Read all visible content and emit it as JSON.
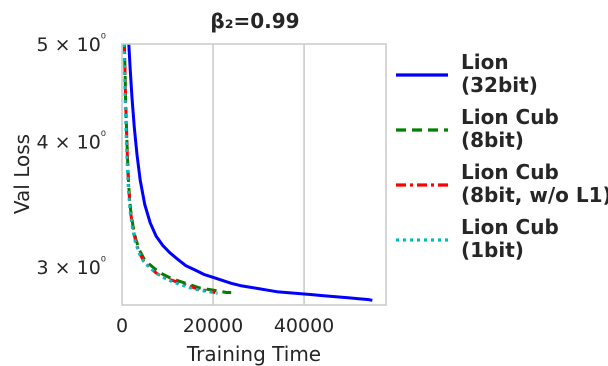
{
  "chart_data": {
    "type": "line",
    "title": "β₂=0.99",
    "xlabel": "Training Time",
    "ylabel": "Val Loss",
    "xlim": [
      0,
      58000
    ],
    "ylim": [
      2.75,
      5.0
    ],
    "y_scale": "log",
    "grid": "x-only",
    "x_ticks": [
      0,
      20000,
      40000
    ],
    "x_tick_labels": [
      "0",
      "20000",
      "40000"
    ],
    "y_ticks": [
      3,
      4,
      5
    ],
    "y_tick_labels": [
      "3 × 10⁰",
      "4 × 10⁰",
      "5 × 10⁰"
    ],
    "legend_position": "right",
    "series": [
      {
        "name": "Lion (32bit)",
        "label_lines": [
          "Lion",
          "(32bit)"
        ],
        "color": "#0000ff",
        "dash": "solid",
        "x": [
          1500,
          1800,
          2200,
          2700,
          3300,
          4000,
          5000,
          6200,
          7500,
          9000,
          10500,
          12000,
          14000,
          16000,
          18000,
          20000,
          22000,
          24000,
          26000,
          28000,
          30000,
          32000,
          34000,
          36000,
          38000,
          40000,
          42000,
          44000,
          46000,
          48000,
          50000,
          52000,
          54000,
          55000
        ],
        "y": [
          5.0,
          4.72,
          4.42,
          4.13,
          3.88,
          3.66,
          3.46,
          3.32,
          3.22,
          3.15,
          3.1,
          3.06,
          3.01,
          2.98,
          2.95,
          2.93,
          2.91,
          2.89,
          2.875,
          2.865,
          2.855,
          2.845,
          2.835,
          2.83,
          2.825,
          2.82,
          2.815,
          2.81,
          2.805,
          2.8,
          2.795,
          2.79,
          2.785,
          2.78
        ]
      },
      {
        "name": "Lion Cub (8bit)",
        "label_lines": [
          "Lion Cub",
          "(8bit)"
        ],
        "color": "#008000",
        "dash": "dashed",
        "x": [
          500,
          650,
          800,
          1000,
          1200,
          1500,
          1900,
          2400,
          3000,
          3800,
          4800,
          6000,
          7500,
          9000,
          11000,
          13000,
          15000,
          17000,
          19000,
          21000,
          23000,
          24000
        ],
        "y": [
          5.0,
          4.72,
          4.4,
          4.1,
          3.85,
          3.6,
          3.42,
          3.3,
          3.2,
          3.12,
          3.06,
          3.02,
          2.98,
          2.95,
          2.92,
          2.9,
          2.88,
          2.86,
          2.85,
          2.84,
          2.83,
          2.83
        ]
      },
      {
        "name": "Lion Cub (8bit, w/o L1)",
        "label_lines": [
          "Lion Cub",
          "(8bit, w/o L1)"
        ],
        "color": "#ff0000",
        "dash": "dashdot",
        "x": [
          500,
          650,
          800,
          1000,
          1200,
          1500,
          1900,
          2400,
          3000,
          3800,
          4800,
          6000,
          7500,
          9000,
          11000,
          13000,
          15000,
          17000,
          19000,
          20500
        ],
        "y": [
          5.0,
          4.7,
          4.38,
          4.08,
          3.83,
          3.58,
          3.4,
          3.28,
          3.18,
          3.1,
          3.04,
          3.0,
          2.96,
          2.93,
          2.91,
          2.89,
          2.87,
          2.85,
          2.84,
          2.83
        ]
      },
      {
        "name": "Lion Cub (1bit)",
        "label_lines": [
          "Lion Cub",
          "(1bit)"
        ],
        "color": "#00bfbf",
        "dash": "dotted",
        "x": [
          400,
          550,
          700,
          900,
          1100,
          1400,
          1800,
          2300,
          2900,
          3700,
          4700,
          5900,
          7400,
          9000,
          11000,
          13000,
          15000,
          17000,
          19000,
          21000
        ],
        "y": [
          5.0,
          4.7,
          4.38,
          4.08,
          3.83,
          3.58,
          3.4,
          3.28,
          3.18,
          3.1,
          3.04,
          3.0,
          2.96,
          2.93,
          2.9,
          2.88,
          2.86,
          2.845,
          2.835,
          2.825
        ]
      }
    ]
  }
}
